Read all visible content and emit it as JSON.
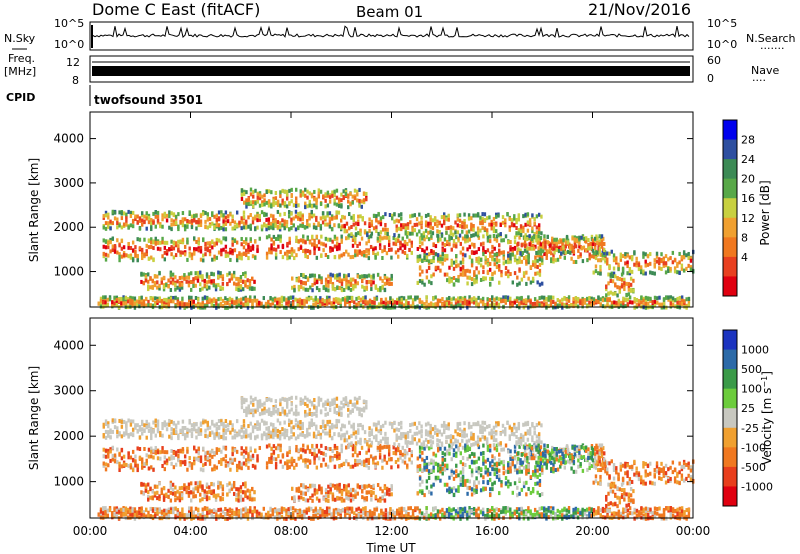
{
  "header": {
    "station": "Dome C East (fitACF)",
    "beam": "Beam 01",
    "date": "21/Nov/2016"
  },
  "side_labels": {
    "nsky": "N.Sky",
    "nsearch": "N.Search",
    "freq": "Freq.",
    "mhz": "[MHz]",
    "nave": "Nave",
    "cpid": "CPID",
    "dots1": ".......",
    "dots2": "...."
  },
  "noise_axis": {
    "top": "10^5",
    "bottom": "10^0"
  },
  "freq_axis": {
    "left_top": "12",
    "left_bottom": "8",
    "right_top": "60",
    "right_bottom": "0"
  },
  "cpid_label": "twofsound 3501",
  "x_axis": {
    "label": "Time UT",
    "ticks": [
      "00:00",
      "04:00",
      "08:00",
      "12:00",
      "16:00",
      "20:00",
      "00:00"
    ]
  },
  "colors": {
    "power_scale": [
      "#0000ee",
      "#2e4fa0",
      "#3c8a55",
      "#58a848",
      "#c8d040",
      "#f0a030",
      "#f07820",
      "#e84020",
      "#e00010"
    ],
    "velocity_scale": [
      "#1c34c0",
      "#2c6aa8",
      "#3a9a48",
      "#6ccc3c",
      "#c8c8c0",
      "#f0a030",
      "#f07820",
      "#e83e1c",
      "#e00010"
    ]
  },
  "chart_data": [
    {
      "type": "heatmap",
      "title": "",
      "xlabel": "",
      "ylabel": "Slant Range [km]",
      "xlim": [
        0,
        24
      ],
      "ylim": [
        200,
        4600
      ],
      "yticks": [
        1000,
        2000,
        3000,
        4000
      ],
      "colorbar": {
        "label": "Power [dB]",
        "ticks": [
          4,
          8,
          12,
          16,
          20,
          24,
          28
        ]
      }
    },
    {
      "type": "heatmap",
      "title": "",
      "xlabel": "Time UT",
      "ylabel": "Slant Range [km]",
      "xlim": [
        0,
        24
      ],
      "ylim": [
        200,
        4600
      ],
      "yticks": [
        1000,
        2000,
        3000,
        4000
      ],
      "colorbar": {
        "label": "Velocity [m s^-1]",
        "ticks": [
          1000,
          500,
          100,
          25,
          -25,
          -100,
          -500,
          -1000
        ]
      }
    }
  ]
}
